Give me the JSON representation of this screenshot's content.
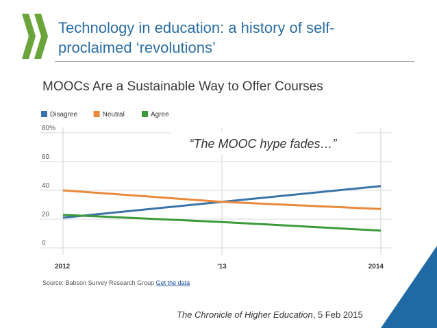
{
  "slide": {
    "title_line1": "Technology in education: a history of self-",
    "title_line2": "proclaimed ‘revolutions’",
    "credit_publication": "The Chronicle of Higher Education",
    "credit_date": ", 5 Feb 2015"
  },
  "colors": {
    "title": "#2b6ea1",
    "logo_green": "#6aa43a",
    "corner_blue": "#1f6aa5"
  },
  "chart_data": {
    "type": "line",
    "title": "MOOCs Are a Sustainable Way to Offer Courses",
    "annotation": "“The MOOC hype fades…”",
    "source_text": "Source: Babson Survey Research Group",
    "source_link": "Get the data",
    "x": [
      2012,
      2013,
      2014
    ],
    "x_tick_labels": [
      "2012",
      "'13",
      "2014"
    ],
    "y_tick_labels": [
      "80%",
      "60",
      "40",
      "20",
      "0"
    ],
    "y_ticks": [
      80,
      60,
      40,
      20,
      0
    ],
    "ylim": [
      0,
      80
    ],
    "series": [
      {
        "name": "Disagree",
        "color": "#3b73a8",
        "values": [
          21,
          32,
          43
        ]
      },
      {
        "name": "Neutral",
        "color": "#e8893b",
        "values": [
          40,
          32,
          27
        ]
      },
      {
        "name": "Agree",
        "color": "#3a9a3a",
        "values": [
          23,
          18,
          12
        ]
      }
    ]
  }
}
